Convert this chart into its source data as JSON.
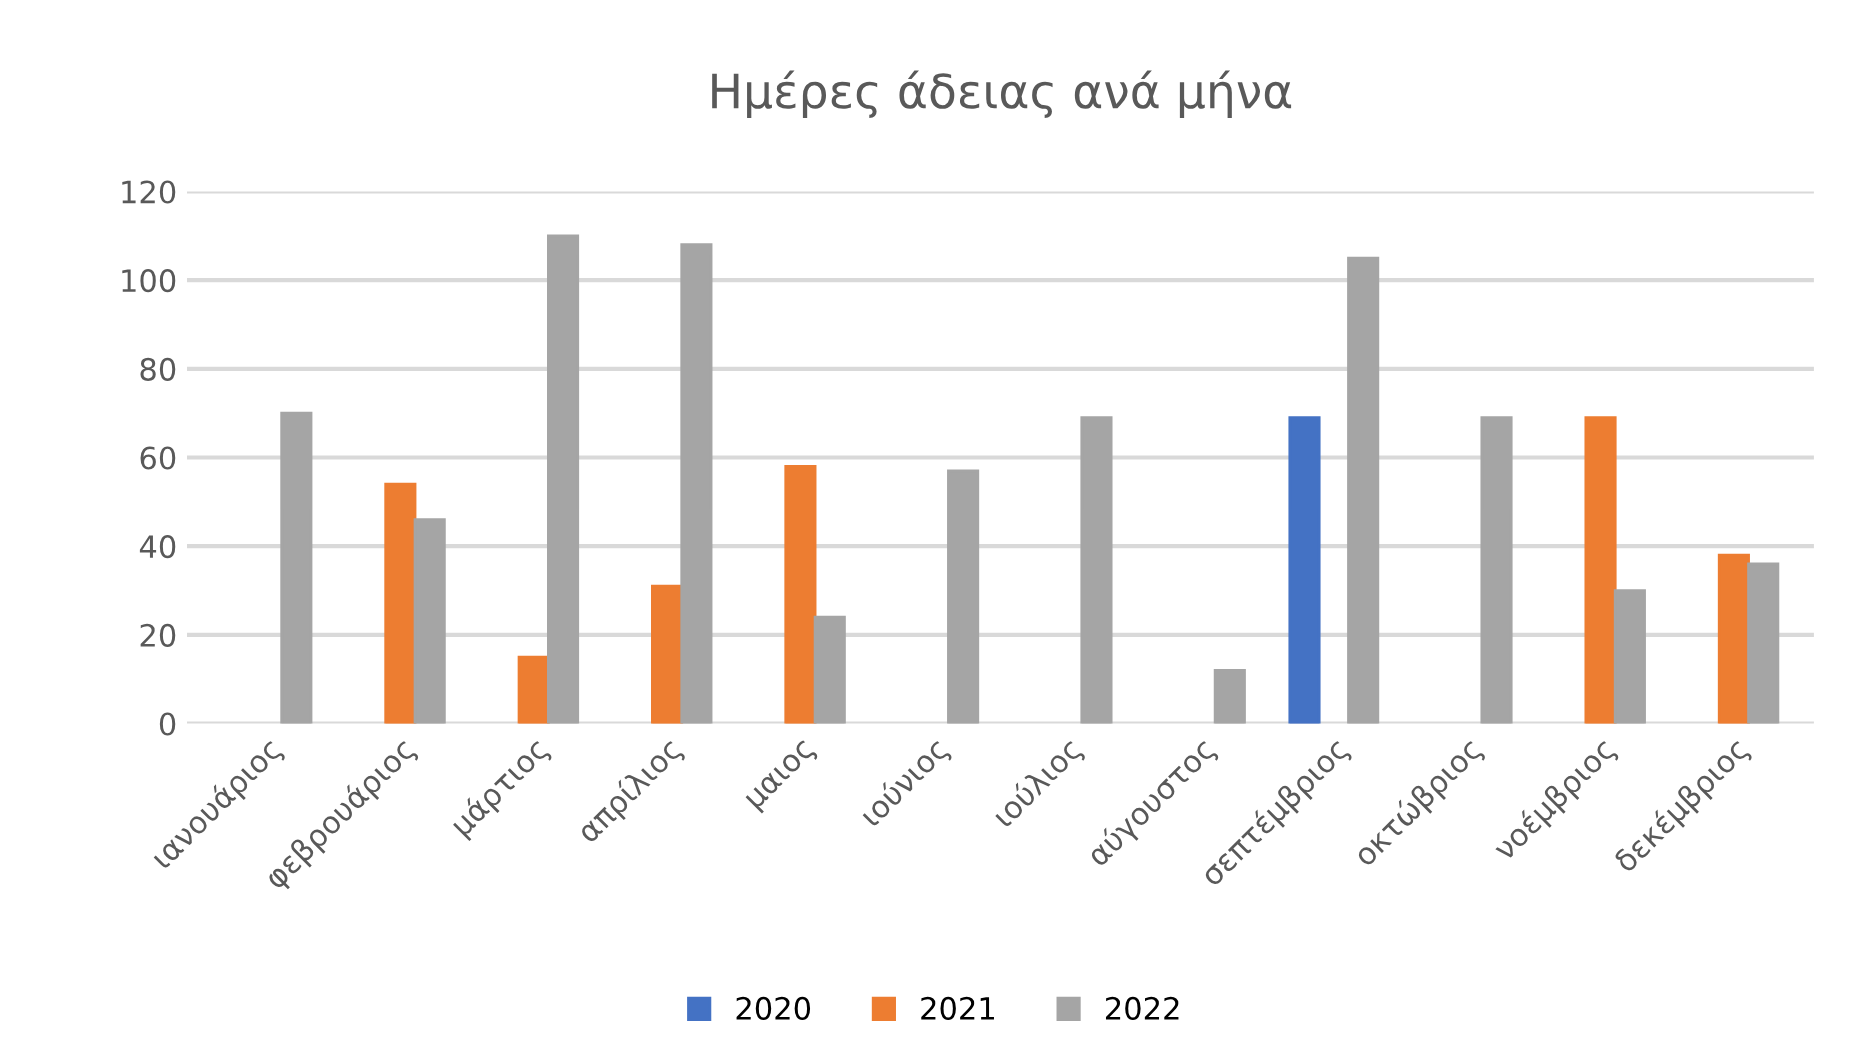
{
  "chart_data": {
    "type": "bar",
    "title": "Ημέρες άδειας ανά μήνα",
    "categories": [
      "ιανουάριος",
      "φεβρουάριος",
      "μάρτιος",
      "απρίλιος",
      "μαιος",
      "ιούνιος",
      "ιούλιος",
      "αύγουστος",
      "σεπτέμβριος",
      "οκτώβριος",
      "νοέμβριος",
      "δεκέμβριος"
    ],
    "series": [
      {
        "name": "2020",
        "color": "#4472c4",
        "values": [
          null,
          null,
          null,
          null,
          null,
          null,
          null,
          null,
          69,
          null,
          null,
          null
        ]
      },
      {
        "name": "2021",
        "color": "#ed7d31",
        "values": [
          null,
          54,
          15,
          31,
          58,
          null,
          null,
          null,
          null,
          null,
          69,
          38
        ]
      },
      {
        "name": "2022",
        "color": "#a5a5a5",
        "values": [
          70,
          46,
          110,
          108,
          24,
          57,
          69,
          12,
          105,
          69,
          30,
          36
        ]
      }
    ],
    "ylim": [
      0,
      120
    ],
    "yticks": [
      0,
      20,
      40,
      60,
      80,
      100,
      120
    ],
    "grid": "y",
    "legend": "bottom"
  }
}
